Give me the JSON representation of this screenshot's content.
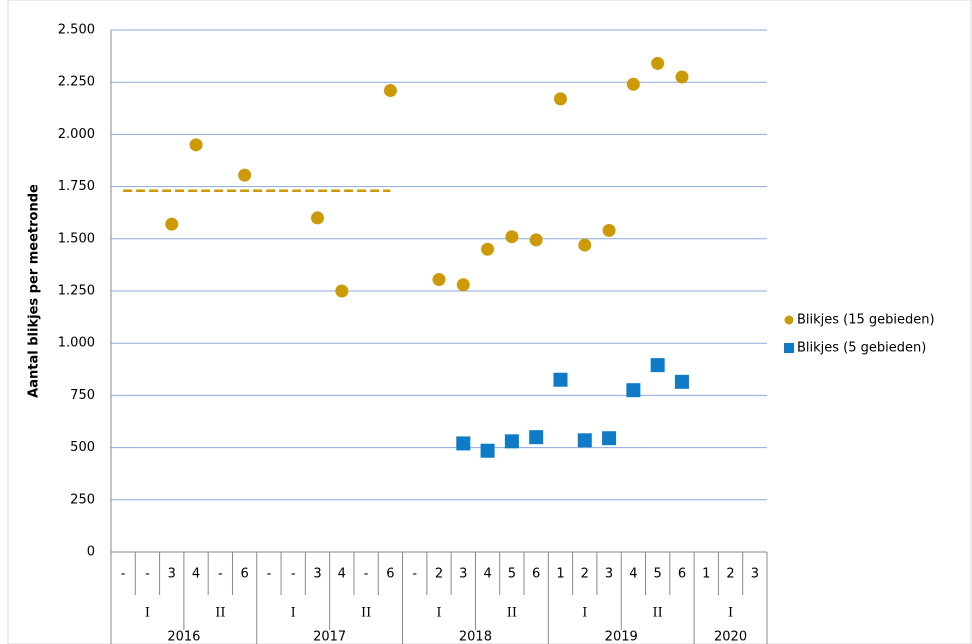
{
  "chart_data": {
    "type": "scatter",
    "y_label": "Aantal blikjes per meetronde",
    "category_groups": [
      {
        "year": "2016",
        "halves": [
          {
            "label": "I",
            "categories": [
              "-",
              "-",
              "3"
            ]
          },
          {
            "label": "II",
            "categories": [
              "4",
              "-",
              "6"
            ]
          }
        ]
      },
      {
        "year": "2017",
        "halves": [
          {
            "label": "I",
            "categories": [
              "-",
              "-",
              "3"
            ]
          },
          {
            "label": "II",
            "categories": [
              "4",
              "-",
              "6"
            ]
          }
        ]
      },
      {
        "year": "2018",
        "halves": [
          {
            "label": "I",
            "categories": [
              "-",
              "2",
              "3"
            ]
          },
          {
            "label": "II",
            "categories": [
              "4",
              "5",
              "6"
            ]
          }
        ]
      },
      {
        "year": "2019",
        "halves": [
          {
            "label": "I",
            "categories": [
              "1",
              "2",
              "3"
            ]
          },
          {
            "label": "II",
            "categories": [
              "4",
              "5",
              "6"
            ]
          }
        ]
      },
      {
        "year": "2020",
        "halves": [
          {
            "label": "I",
            "categories": [
              "1",
              "2",
              "3"
            ]
          }
        ]
      }
    ],
    "series": [
      {
        "name": "Blikjes (15 gebieden)",
        "color": "#cc9a06",
        "marker": "circle",
        "values": [
          null,
          null,
          1570,
          1950,
          null,
          1805,
          null,
          null,
          1600,
          1250,
          null,
          2210,
          null,
          1305,
          1280,
          1450,
          1510,
          1495,
          2170,
          1470,
          1540,
          2240,
          2340,
          2275,
          null,
          null,
          null
        ]
      },
      {
        "name": "Blikjes (5 gebieden)",
        "color": "#0f7ac6",
        "marker": "square",
        "values": [
          null,
          null,
          null,
          null,
          null,
          null,
          null,
          null,
          null,
          null,
          null,
          null,
          null,
          null,
          520,
          485,
          530,
          550,
          825,
          535,
          545,
          775,
          895,
          815,
          null,
          null,
          null
        ]
      }
    ],
    "dashed_line": {
      "color": "#cc9a06",
      "values": [
        1730,
        1730,
        1730,
        1730,
        1730,
        1730,
        1730,
        1730,
        1730,
        1730,
        1730,
        1730,
        null,
        null,
        null,
        null,
        null,
        null,
        null,
        null,
        null,
        null,
        null,
        null,
        null,
        null,
        null
      ]
    },
    "ylim": [
      0,
      2500
    ],
    "yticks": [
      0,
      250,
      500,
      750,
      {
        "value": 1000,
        "label": "1.000"
      },
      {
        "value": 1250,
        "label": "1.250"
      },
      {
        "value": 1500,
        "label": "1.500"
      },
      {
        "value": 1750,
        "label": "1.750"
      },
      {
        "value": 2000,
        "label": "2.000"
      },
      {
        "value": 2250,
        "label": "2.250"
      },
      {
        "value": 2500,
        "label": "2.500"
      }
    ],
    "grid": true
  }
}
